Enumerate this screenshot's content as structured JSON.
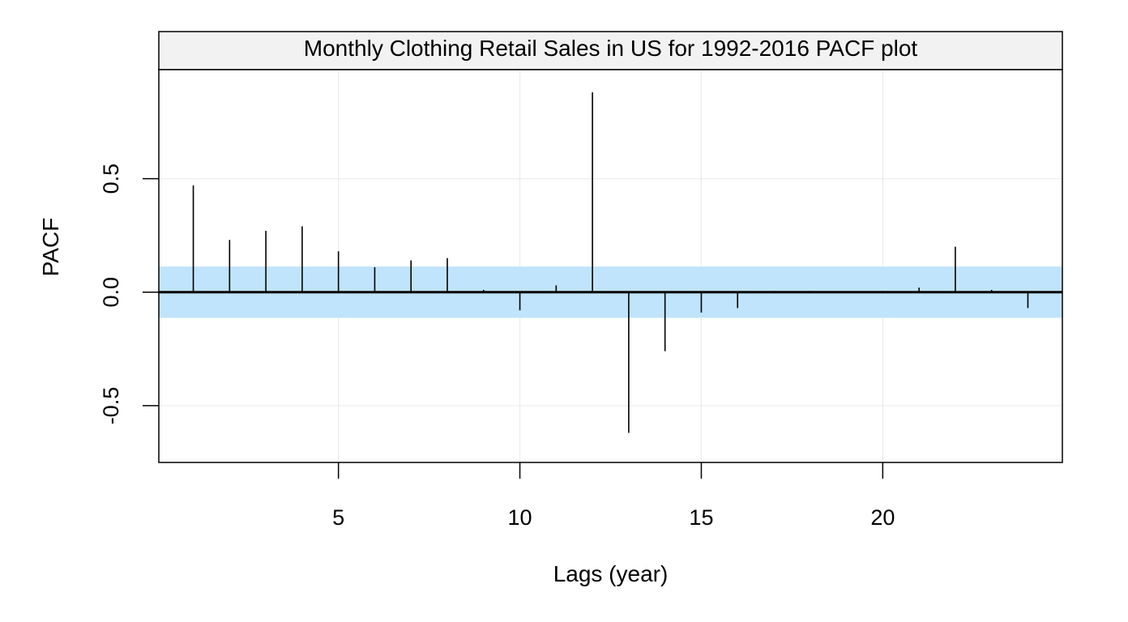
{
  "chart_data": {
    "type": "bar",
    "title": "Monthly Clothing Retail Sales in US for 1992-2016 PACF plot",
    "xlabel": "Lags (year)",
    "ylabel": "PACF",
    "xlim": [
      0.05,
      24.95
    ],
    "ylim": [
      -0.75,
      0.98
    ],
    "x_ticks": [
      5,
      10,
      15,
      20
    ],
    "x_tick_labels": [
      "5",
      "10",
      "15",
      "20"
    ],
    "y_ticks": [
      -0.5,
      0.0,
      0.5
    ],
    "y_tick_labels": [
      "-0.5",
      "0.0",
      "0.5"
    ],
    "grid": true,
    "confidence_band": [
      -0.113,
      0.113
    ],
    "lags": [
      1,
      2,
      3,
      4,
      5,
      6,
      7,
      8,
      9,
      10,
      11,
      12,
      13,
      14,
      15,
      16,
      17,
      18,
      19,
      20,
      21,
      22,
      23,
      24
    ],
    "values": [
      0.47,
      0.23,
      0.27,
      0.29,
      0.18,
      0.11,
      0.14,
      0.15,
      0.01,
      -0.08,
      0.03,
      0.88,
      -0.62,
      -0.26,
      -0.09,
      -0.07,
      0.005,
      0.005,
      0.0,
      0.005,
      0.02,
      0.2,
      0.01,
      -0.07
    ]
  },
  "colors": {
    "band": "#c0e4fb",
    "strip": "#f2f2f2",
    "grid": "#ececec",
    "line": "#000000"
  }
}
